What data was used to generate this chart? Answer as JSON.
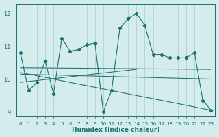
{
  "x": [
    0,
    1,
    2,
    3,
    4,
    5,
    6,
    7,
    8,
    9,
    10,
    11,
    12,
    13,
    14,
    15,
    16,
    17,
    18,
    19,
    20,
    21,
    22,
    23
  ],
  "y_main": [
    10.8,
    9.65,
    9.9,
    10.55,
    9.55,
    11.25,
    10.85,
    10.9,
    11.05,
    11.1,
    9.0,
    9.65,
    11.55,
    11.85,
    12.0,
    11.65,
    10.75,
    10.75,
    10.65,
    10.65,
    10.65,
    10.8,
    9.35,
    9.05
  ],
  "trend_lines": [
    {
      "x": [
        0,
        23
      ],
      "y": [
        10.35,
        10.3
      ]
    },
    {
      "x": [
        0,
        23
      ],
      "y": [
        10.2,
        9.05
      ]
    },
    {
      "x": [
        0,
        14
      ],
      "y": [
        9.9,
        10.3
      ]
    },
    {
      "x": [
        0,
        23
      ],
      "y": [
        10.15,
        10.0
      ]
    }
  ],
  "xlabel": "Humidex (Indice chaleur)",
  "ylim": [
    8.85,
    12.3
  ],
  "xlim": [
    -0.5,
    23.5
  ],
  "yticks": [
    9,
    10,
    11,
    12
  ],
  "xticks": [
    0,
    1,
    2,
    3,
    4,
    5,
    6,
    7,
    8,
    9,
    10,
    11,
    12,
    13,
    14,
    15,
    16,
    17,
    18,
    19,
    20,
    21,
    22,
    23
  ],
  "line_color": "#1a7070",
  "bg_color": "#d5ecec",
  "grid_color": "#aacccc"
}
